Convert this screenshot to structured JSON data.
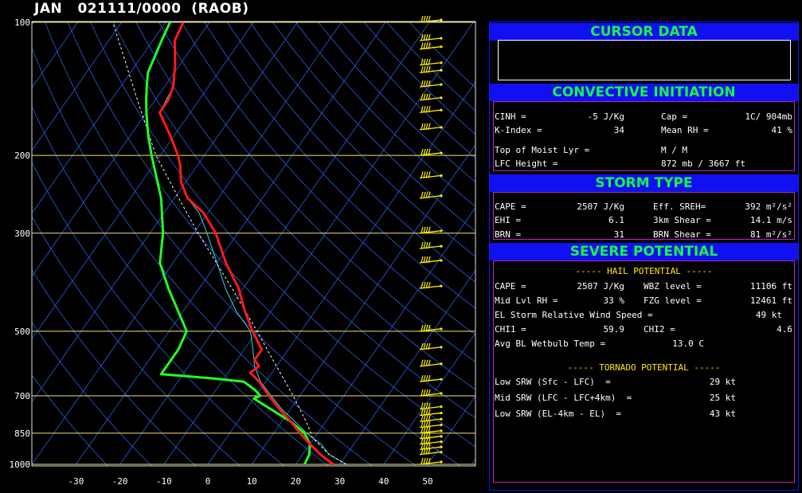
{
  "title": "JAN   021111/0000  (RAOB)",
  "colors": {
    "temperature": "#ff1a1a",
    "dewpoint": "#22ff22",
    "virtual_temp": "#30d8e0",
    "parcel": "#ffffff",
    "isotherms": "#2a5fe0",
    "isobars": "#f8e070",
    "wind_barbs": "#ffee00",
    "panel_header": "#1010f0",
    "header_text": "#10ff40"
  },
  "chart_data": {
    "type": "line",
    "subtype": "skew-T log-P",
    "xlim": [
      -35,
      55
    ],
    "ylim": [
      1000,
      100
    ],
    "y_scale": "log",
    "grid": true,
    "p_ticks": [
      100,
      200,
      300,
      500,
      700,
      850,
      1000
    ],
    "p_tick_labels": [
      "100",
      "200",
      "300",
      "500",
      "700",
      "850",
      "1000"
    ],
    "t_ticks": [
      -30,
      -20,
      -10,
      0,
      10,
      20,
      30,
      40,
      50
    ],
    "t_tick_labels": [
      "-30",
      "-20",
      "-10",
      "0",
      "10",
      "20",
      "30",
      "40",
      "50"
    ],
    "series": [
      {
        "key": "temperature",
        "values": [
          [
            1000,
            28.5
          ],
          [
            950,
            24
          ],
          [
            900,
            20
          ],
          [
            850,
            16
          ],
          [
            800,
            12
          ],
          [
            750,
            7.5
          ],
          [
            700,
            3
          ],
          [
            650,
            -1.5
          ],
          [
            620,
            -5
          ],
          [
            600,
            -4
          ],
          [
            580,
            -6
          ],
          [
            550,
            -6
          ],
          [
            500,
            -11
          ],
          [
            450,
            -16
          ],
          [
            400,
            -21
          ],
          [
            350,
            -28
          ],
          [
            300,
            -35
          ],
          [
            270,
            -41
          ],
          [
            250,
            -47
          ],
          [
            230,
            -51
          ],
          [
            210,
            -54
          ],
          [
            200,
            -56
          ],
          [
            180,
            -61
          ],
          [
            160,
            -67
          ],
          [
            150,
            -67
          ],
          [
            140,
            -68
          ],
          [
            125,
            -71
          ],
          [
            110,
            -75
          ],
          [
            100,
            -76
          ]
        ]
      },
      {
        "key": "dewpoint",
        "values": [
          [
            1000,
            22
          ],
          [
            950,
            21.5
          ],
          [
            900,
            20
          ],
          [
            850,
            17
          ],
          [
            800,
            12
          ],
          [
            750,
            5.5
          ],
          [
            710,
            0
          ],
          [
            700,
            1
          ],
          [
            680,
            -1
          ],
          [
            650,
            -5
          ],
          [
            640,
            -12
          ],
          [
            625,
            -25
          ],
          [
            600,
            -25
          ],
          [
            550,
            -25
          ],
          [
            500,
            -26
          ],
          [
            480,
            -28
          ],
          [
            400,
            -37
          ],
          [
            350,
            -43
          ],
          [
            300,
            -47
          ],
          [
            250,
            -53
          ],
          [
            200,
            -62
          ],
          [
            180,
            -66
          ],
          [
            160,
            -70
          ],
          [
            150,
            -72
          ],
          [
            140,
            -74
          ],
          [
            130,
            -76
          ],
          [
            110,
            -78
          ],
          [
            100,
            -79
          ]
        ]
      },
      {
        "key": "virtual_temp",
        "values": [
          [
            1000,
            31.5
          ],
          [
            950,
            26
          ],
          [
            900,
            22.5
          ],
          [
            850,
            17.5
          ],
          [
            800,
            13
          ],
          [
            750,
            8
          ],
          [
            700,
            3.5
          ],
          [
            650,
            -1.2
          ],
          [
            600,
            -5
          ],
          [
            550,
            -8
          ],
          [
            500,
            -11.5
          ],
          [
            450,
            -18
          ],
          [
            400,
            -24
          ],
          [
            350,
            -30
          ],
          [
            300,
            -37
          ],
          [
            270,
            -42
          ],
          [
            250,
            -47
          ],
          [
            230,
            -51
          ],
          [
            210,
            -54
          ],
          [
            200,
            -56
          ],
          [
            180,
            -61
          ],
          [
            160,
            -67
          ],
          [
            140,
            -68
          ],
          [
            125,
            -71
          ],
          [
            110,
            -75
          ],
          [
            100,
            -76
          ]
        ]
      },
      {
        "key": "parcel",
        "values": [
          [
            1000,
            31.5
          ],
          [
            950,
            26
          ],
          [
            900,
            22
          ],
          [
            870,
            19.5
          ],
          [
            850,
            18.5
          ],
          [
            800,
            15.5
          ],
          [
            700,
            8.5
          ],
          [
            600,
            0
          ],
          [
            500,
            -10
          ],
          [
            400,
            -22.5
          ],
          [
            300,
            -39
          ],
          [
            250,
            -49
          ],
          [
            200,
            -61
          ],
          [
            150,
            -74
          ],
          [
            100,
            -92
          ]
        ]
      }
    ],
    "wind_barbs": {
      "levels": [
        1000,
        950,
        925,
        900,
        875,
        850,
        825,
        800,
        775,
        750,
        700,
        650,
        600,
        550,
        500,
        400,
        350,
        325,
        300,
        250,
        225,
        200,
        175,
        160,
        150,
        140,
        130,
        125,
        115,
        110,
        100
      ]
    }
  },
  "panel": {
    "cursor": {
      "header": "CURSOR DATA"
    },
    "ci": {
      "header": "CONVECTIVE  INITIATION",
      "rows": [
        [
          "CINH =",
          "-5 J/Kg",
          "Cap =",
          "1C/ 904mb"
        ],
        [
          "K-Index =",
          "34",
          "Mean RH =",
          "41 %"
        ],
        [
          "Top of Moist Lyr =",
          "",
          "M / M",
          ""
        ],
        [
          "LFC Height =",
          "",
          "872 mb / 3667 ft",
          ""
        ]
      ]
    },
    "storm": {
      "header": "STORM TYPE",
      "rows": [
        [
          "CAPE =",
          "2507 J/Kg",
          "Eff. SREH=",
          "392 m²/s²"
        ],
        [
          "EHI =",
          "6.1",
          "3km Shear =",
          "14.1 m/s"
        ],
        [
          "BRN =",
          "31",
          "BRN Shear =",
          "81 m²/s²"
        ]
      ]
    },
    "severe": {
      "header": "SEVERE POTENTIAL",
      "hail_title": "----- HAIL POTENTIAL -----",
      "hail_rows": [
        [
          "CAPE =",
          "2507 J/Kg",
          "WBZ level =",
          "11106 ft"
        ],
        [
          "Mid Lvl RH =",
          "33 %",
          "FZG level =",
          "12461 ft"
        ],
        [
          "EL Storm Relative Wind Speed =",
          "",
          "",
          "49 kt"
        ],
        [
          "CHI1 =",
          "59.9",
          "CHI2 =",
          "4.6"
        ],
        [
          "Avg BL Wetbulb Temp =",
          "13.0 C",
          "",
          ""
        ]
      ],
      "tornado_title": "----- TORNADO POTENTIAL -----",
      "tornado_rows": [
        [
          "Low SRW (Sfc - LFC)  =",
          "29 kt"
        ],
        [
          "Mid SRW (LFC - LFC+4km)  =",
          "25 kt"
        ],
        [
          "Low SRW (EL-4km - EL)  =",
          "43 kt"
        ]
      ]
    }
  }
}
